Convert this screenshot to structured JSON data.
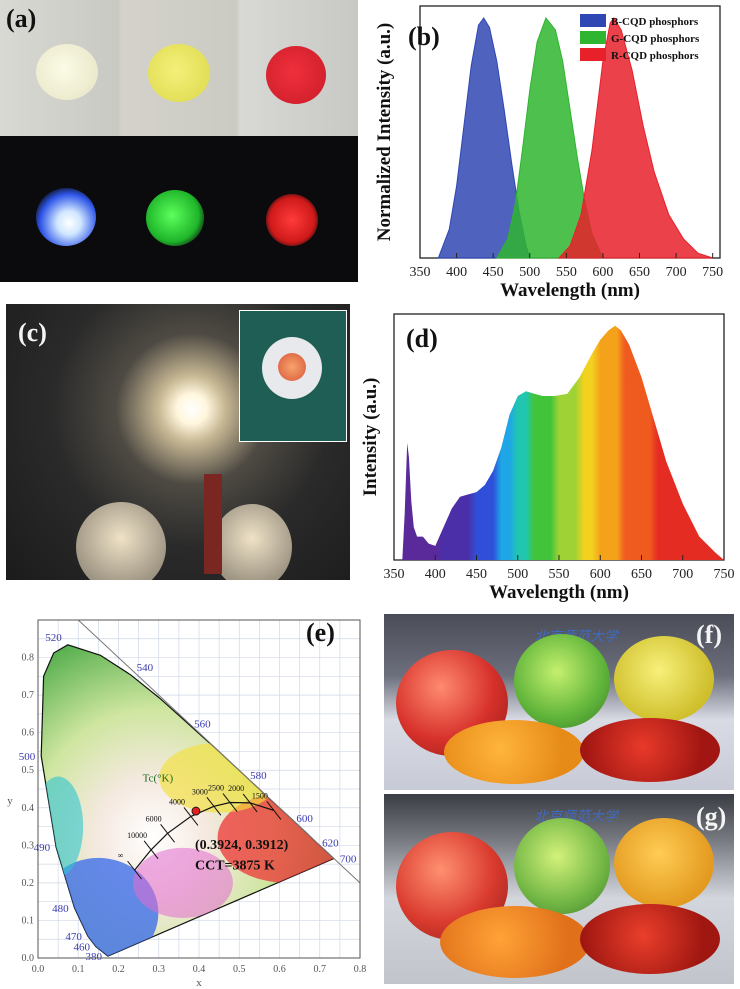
{
  "labels": {
    "a": "(a)",
    "b": "(b)",
    "c": "(c)",
    "d": "(d)",
    "e": "(e)",
    "f": "(f)",
    "g": "(g)"
  },
  "photo_text": {
    "f_banner": "北京师范大学",
    "g_banner": "北京师范大学"
  },
  "colors": {
    "blue": "#2f47b3",
    "green": "#2fb52f",
    "red": "#e8202a",
    "cie_bg": "#ffffff",
    "grid": "#cfd8e8",
    "cie_label": "#3b3bb0"
  },
  "chart_data": [
    {
      "id": "b",
      "type": "area",
      "xlabel": "Wavelength (nm)",
      "ylabel": "Normalized Intensity (a.u.)",
      "xlim": [
        350,
        760
      ],
      "ylim": [
        0,
        1.05
      ],
      "xticks": [
        350,
        400,
        450,
        500,
        550,
        600,
        650,
        700,
        750
      ],
      "legend_position": "top-right",
      "series": [
        {
          "name": "B-CQD phosphors",
          "color": "#2f47b3",
          "peak": 437,
          "start": 375,
          "end": 500,
          "x": [
            375,
            390,
            400,
            410,
            420,
            430,
            437,
            445,
            455,
            465,
            475,
            485,
            495,
            500
          ],
          "y": [
            0.0,
            0.12,
            0.3,
            0.55,
            0.8,
            0.97,
            1.0,
            0.96,
            0.82,
            0.62,
            0.4,
            0.2,
            0.05,
            0.0
          ]
        },
        {
          "name": "G-CQD phosphors",
          "color": "#2fb52f",
          "peak": 522,
          "start": 455,
          "end": 600,
          "x": [
            455,
            470,
            480,
            490,
            500,
            510,
            522,
            535,
            545,
            555,
            565,
            575,
            585,
            600
          ],
          "y": [
            0.0,
            0.08,
            0.22,
            0.45,
            0.7,
            0.9,
            1.0,
            0.95,
            0.82,
            0.62,
            0.42,
            0.24,
            0.1,
            0.0
          ]
        },
        {
          "name": "R-CQD phosphors",
          "color": "#e8202a",
          "peak": 615,
          "start": 540,
          "end": 750,
          "x": [
            540,
            555,
            570,
            585,
            600,
            610,
            615,
            625,
            640,
            655,
            670,
            690,
            710,
            730,
            750
          ],
          "y": [
            0.0,
            0.05,
            0.18,
            0.45,
            0.82,
            0.98,
            1.0,
            0.95,
            0.78,
            0.55,
            0.36,
            0.18,
            0.08,
            0.02,
            0.0
          ]
        }
      ]
    },
    {
      "id": "d",
      "type": "area",
      "xlabel": "Wavelength (nm)",
      "ylabel": "Intensity (a.u.)",
      "xlim": [
        350,
        750
      ],
      "ylim": [
        0,
        1.05
      ],
      "xticks": [
        350,
        400,
        450,
        500,
        550,
        600,
        650,
        700,
        750
      ],
      "series": [
        {
          "x": [
            360,
            363,
            366,
            368,
            371,
            374,
            378,
            385,
            392,
            400,
            410,
            420,
            430,
            440,
            450,
            460,
            470,
            480,
            490,
            500,
            510,
            520,
            530,
            545,
            560,
            575,
            590,
            600,
            610,
            618,
            625,
            635,
            650,
            665,
            680,
            700,
            720,
            740,
            750
          ],
          "y": [
            0.0,
            0.2,
            0.5,
            0.44,
            0.25,
            0.14,
            0.1,
            0.1,
            0.07,
            0.06,
            0.14,
            0.22,
            0.27,
            0.28,
            0.29,
            0.32,
            0.38,
            0.48,
            0.62,
            0.7,
            0.72,
            0.71,
            0.7,
            0.7,
            0.71,
            0.78,
            0.88,
            0.94,
            0.98,
            1.0,
            0.98,
            0.92,
            0.78,
            0.6,
            0.42,
            0.24,
            0.1,
            0.03,
            0.0
          ]
        }
      ]
    },
    {
      "id": "e",
      "type": "scatter",
      "xlabel": "x",
      "ylabel": "y",
      "xlim": [
        0.0,
        0.8
      ],
      "ylim": [
        0.0,
        0.9
      ],
      "xticks": [
        0.0,
        0.1,
        0.2,
        0.3,
        0.4,
        0.5,
        0.6,
        0.7,
        0.8
      ],
      "yticks": [
        0.0,
        0.1,
        0.2,
        0.3,
        0.4,
        0.5,
        0.6,
        0.7,
        0.8
      ],
      "grid": true,
      "point": {
        "x": 0.3924,
        "y": 0.3912,
        "label": "(0.3924, 0.3912)",
        "cct_label": "CCT=3875 K"
      },
      "tc_label": "Tc(°K)",
      "cct_ticks": [
        {
          "label": "10000",
          "x": 0.281,
          "y": 0.288
        },
        {
          "label": "6000",
          "x": 0.322,
          "y": 0.332
        },
        {
          "label": "4000",
          "x": 0.38,
          "y": 0.377
        },
        {
          "label": "3000",
          "x": 0.437,
          "y": 0.404
        },
        {
          "label": "2500",
          "x": 0.477,
          "y": 0.414
        },
        {
          "label": "2000",
          "x": 0.527,
          "y": 0.413
        },
        {
          "label": "1500",
          "x": 0.586,
          "y": 0.393
        },
        {
          "label": "∞",
          "x": 0.24,
          "y": 0.234
        }
      ],
      "wavelength_labels": [
        {
          "label": "380",
          "x": 0.174,
          "y": 0.005
        },
        {
          "label": "460",
          "x": 0.144,
          "y": 0.03
        },
        {
          "label": "470",
          "x": 0.124,
          "y": 0.058
        },
        {
          "label": "480",
          "x": 0.091,
          "y": 0.133
        },
        {
          "label": "490",
          "x": 0.045,
          "y": 0.295
        },
        {
          "label": "500",
          "x": 0.008,
          "y": 0.538
        },
        {
          "label": "520",
          "x": 0.074,
          "y": 0.834
        },
        {
          "label": "540",
          "x": 0.23,
          "y": 0.754
        },
        {
          "label": "560",
          "x": 0.373,
          "y": 0.624
        },
        {
          "label": "580",
          "x": 0.512,
          "y": 0.487
        },
        {
          "label": "600",
          "x": 0.627,
          "y": 0.373
        },
        {
          "label": "620",
          "x": 0.691,
          "y": 0.308
        },
        {
          "label": "700",
          "x": 0.735,
          "y": 0.265
        }
      ],
      "locus": {
        "x": [
          0.174,
          0.144,
          0.124,
          0.091,
          0.045,
          0.008,
          0.014,
          0.039,
          0.074,
          0.155,
          0.23,
          0.302,
          0.373,
          0.444,
          0.512,
          0.575,
          0.627,
          0.666,
          0.691,
          0.72,
          0.735
        ],
        "y": [
          0.005,
          0.03,
          0.058,
          0.133,
          0.295,
          0.538,
          0.75,
          0.812,
          0.834,
          0.806,
          0.754,
          0.692,
          0.624,
          0.555,
          0.487,
          0.424,
          0.373,
          0.334,
          0.308,
          0.28,
          0.265
        ]
      }
    }
  ]
}
